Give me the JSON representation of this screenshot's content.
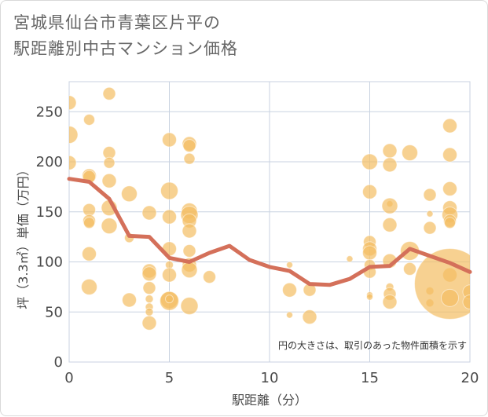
{
  "title": {
    "line1": "宮城県仙台市青葉区片平の",
    "line2": "駅距離別中古マンション価格"
  },
  "note": "円の大きさは、取引のあった物件面積を示す",
  "colors": {
    "bubble": "#f4bd62",
    "line": "#d4705a",
    "grid": "#c8d2e0",
    "plot_border": "#c8d2e0"
  },
  "chart_data": {
    "type": "scatter",
    "xlabel": "駅距離（分）",
    "ylabel": "坪（3.3㎡）単価（万円）",
    "xlim": [
      0,
      20
    ],
    "ylim": [
      0,
      280
    ],
    "x_ticks": [
      0,
      5,
      10,
      15,
      20
    ],
    "y_ticks": [
      0,
      50,
      100,
      150,
      200,
      250
    ],
    "grid": true,
    "bubbles": [
      {
        "x": 0,
        "y": 259,
        "r": 9
      },
      {
        "x": 0,
        "y": 227,
        "r": 11
      },
      {
        "x": 0,
        "y": 199,
        "r": 9
      },
      {
        "x": 1,
        "y": 242,
        "r": 7
      },
      {
        "x": 1,
        "y": 186,
        "r": 9
      },
      {
        "x": 1,
        "y": 185,
        "r": 8
      },
      {
        "x": 1,
        "y": 152,
        "r": 8
      },
      {
        "x": 1,
        "y": 141,
        "r": 8
      },
      {
        "x": 1,
        "y": 139,
        "r": 7
      },
      {
        "x": 1,
        "y": 108,
        "r": 9
      },
      {
        "x": 1,
        "y": 75,
        "r": 10
      },
      {
        "x": 2,
        "y": 268,
        "r": 8
      },
      {
        "x": 2,
        "y": 209,
        "r": 8
      },
      {
        "x": 2,
        "y": 199,
        "r": 7
      },
      {
        "x": 2,
        "y": 181,
        "r": 9
      },
      {
        "x": 2,
        "y": 154,
        "r": 10
      },
      {
        "x": 2,
        "y": 136,
        "r": 10
      },
      {
        "x": 3,
        "y": 168,
        "r": 10
      },
      {
        "x": 3,
        "y": 124,
        "r": 6
      },
      {
        "x": 3,
        "y": 62,
        "r": 9
      },
      {
        "x": 4,
        "y": 149,
        "r": 9
      },
      {
        "x": 4,
        "y": 91,
        "r": 9
      },
      {
        "x": 4,
        "y": 88,
        "r": 9
      },
      {
        "x": 4,
        "y": 74,
        "r": 8
      },
      {
        "x": 4,
        "y": 63,
        "r": 5
      },
      {
        "x": 4,
        "y": 55,
        "r": 5
      },
      {
        "x": 4,
        "y": 50,
        "r": 5
      },
      {
        "x": 4,
        "y": 39,
        "r": 9
      },
      {
        "x": 5,
        "y": 222,
        "r": 9
      },
      {
        "x": 5,
        "y": 171,
        "r": 11
      },
      {
        "x": 5,
        "y": 145,
        "r": 9
      },
      {
        "x": 5,
        "y": 113,
        "r": 9
      },
      {
        "x": 5,
        "y": 97,
        "r": 5
      },
      {
        "x": 5,
        "y": 87,
        "r": 9
      },
      {
        "x": 5,
        "y": 62,
        "r": 11
      },
      {
        "x": 5,
        "y": 61,
        "r": 12
      },
      {
        "x": 5,
        "y": 63,
        "r": 5
      },
      {
        "x": 6,
        "y": 218,
        "r": 9
      },
      {
        "x": 6,
        "y": 216,
        "r": 8
      },
      {
        "x": 6,
        "y": 203,
        "r": 7
      },
      {
        "x": 6,
        "y": 151,
        "r": 10
      },
      {
        "x": 6,
        "y": 147,
        "r": 11
      },
      {
        "x": 6,
        "y": 141,
        "r": 9
      },
      {
        "x": 6,
        "y": 131,
        "r": 9
      },
      {
        "x": 6,
        "y": 111,
        "r": 8
      },
      {
        "x": 6,
        "y": 97,
        "r": 9
      },
      {
        "x": 6,
        "y": 92,
        "r": 10
      },
      {
        "x": 6,
        "y": 56,
        "r": 11
      },
      {
        "x": 7,
        "y": 85,
        "r": 8
      },
      {
        "x": 11,
        "y": 97,
        "r": 4
      },
      {
        "x": 11,
        "y": 72,
        "r": 9
      },
      {
        "x": 11,
        "y": 47,
        "r": 4
      },
      {
        "x": 12,
        "y": 72,
        "r": 8
      },
      {
        "x": 12,
        "y": 45,
        "r": 9
      },
      {
        "x": 14,
        "y": 103,
        "r": 4
      },
      {
        "x": 15,
        "y": 200,
        "r": 10
      },
      {
        "x": 15,
        "y": 170,
        "r": 9
      },
      {
        "x": 15,
        "y": 120,
        "r": 8
      },
      {
        "x": 15,
        "y": 113,
        "r": 9
      },
      {
        "x": 15,
        "y": 109,
        "r": 9
      },
      {
        "x": 15,
        "y": 97,
        "r": 7
      },
      {
        "x": 15,
        "y": 90,
        "r": 8
      },
      {
        "x": 15,
        "y": 67,
        "r": 4
      },
      {
        "x": 15,
        "y": 65,
        "r": 4
      },
      {
        "x": 16,
        "y": 211,
        "r": 9
      },
      {
        "x": 16,
        "y": 197,
        "r": 9
      },
      {
        "x": 16,
        "y": 158,
        "r": 4
      },
      {
        "x": 16,
        "y": 156,
        "r": 10
      },
      {
        "x": 16,
        "y": 137,
        "r": 9
      },
      {
        "x": 16,
        "y": 101,
        "r": 9
      },
      {
        "x": 16,
        "y": 75,
        "r": 5
      },
      {
        "x": 16,
        "y": 68,
        "r": 8
      },
      {
        "x": 16,
        "y": 60,
        "r": 9
      },
      {
        "x": 17,
        "y": 209,
        "r": 10
      },
      {
        "x": 17,
        "y": 111,
        "r": 12
      },
      {
        "x": 17,
        "y": 93,
        "r": 8
      },
      {
        "x": 18,
        "y": 167,
        "r": 8
      },
      {
        "x": 18,
        "y": 148,
        "r": 4
      },
      {
        "x": 18,
        "y": 134,
        "r": 8
      },
      {
        "x": 18,
        "y": 71,
        "r": 5
      },
      {
        "x": 18,
        "y": 59,
        "r": 5
      },
      {
        "x": 19,
        "y": 236,
        "r": 9
      },
      {
        "x": 19,
        "y": 207,
        "r": 9
      },
      {
        "x": 19,
        "y": 173,
        "r": 9
      },
      {
        "x": 19,
        "y": 154,
        "r": 9
      },
      {
        "x": 19,
        "y": 147,
        "r": 10
      },
      {
        "x": 19,
        "y": 141,
        "r": 8
      },
      {
        "x": 19,
        "y": 139,
        "r": 7
      },
      {
        "x": 19,
        "y": 87,
        "r": 9
      },
      {
        "x": 19,
        "y": 78,
        "r": 45
      },
      {
        "x": 19,
        "y": 64,
        "r": 11
      },
      {
        "x": 20,
        "y": 70,
        "r": 9
      },
      {
        "x": 20,
        "y": 60,
        "r": 9
      }
    ],
    "average_line": {
      "x": [
        0,
        1,
        2,
        3,
        4,
        5,
        6,
        7,
        8,
        9,
        10,
        11,
        12,
        13,
        14,
        15,
        16,
        17,
        18,
        19,
        20
      ],
      "y": [
        183,
        180,
        163,
        126,
        125,
        104,
        100,
        109,
        116,
        102,
        95,
        91,
        78,
        77,
        83,
        95,
        96,
        113,
        106,
        99,
        90
      ]
    }
  }
}
